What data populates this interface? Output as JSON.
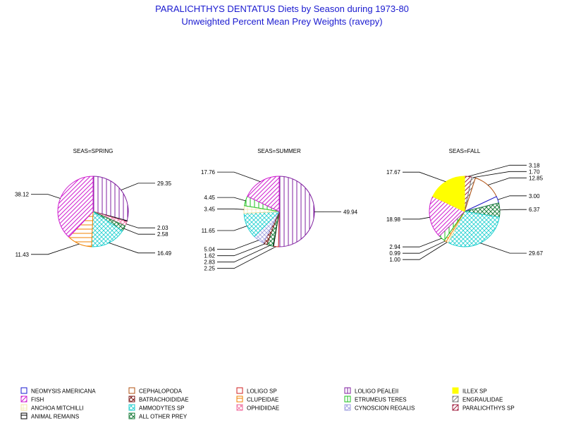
{
  "chart_data": {
    "type": "pie",
    "title": "PARALICHTHYS DENTATUS Diets by Season during 1973-80",
    "subtitle": "Unweighted Percent Mean Prey Weights (ravepy)",
    "colors": {
      "NEOMYSIS AMERICANA": "#1a1ad0",
      "CEPHALOPODA": "#b05010",
      "LOLIGO SP": "#d02020",
      "LOLIGO PEALEII": "#8020a0",
      "ILLEX SP": "#ffff00",
      "FISH": "#d020d0",
      "BATRACHOIDIDAE": "#802020",
      "CLUPEIDAE": "#f08000",
      "ETRUMEUS TERES": "#20c020",
      "ENGRAULIDAE": "#808080",
      "ANCHOA MITCHILLI": "#f0e0a0",
      "AMMODYTES SP": "#20d0d0",
      "OPHIDIIDAE": "#f070a0",
      "CYNOSCION REGALIS": "#a0a0e0",
      "PARALICHTHYS SP": "#a02040",
      "ANIMAL REMAINS": "#000000",
      "ALL OTHER PREY": "#208040"
    },
    "legend": [
      "NEOMYSIS AMERICANA",
      "CEPHALOPODA",
      "LOLIGO SP",
      "LOLIGO PEALEII",
      "ILLEX SP",
      "FISH",
      "BATRACHOIDIDAE",
      "CLUPEIDAE",
      "ETRUMEUS TERES",
      "ENGRAULIDAE",
      "ANCHOA MITCHILLI",
      "AMMODYTES SP",
      "OPHIDIIDAE",
      "CYNOSCION REGALIS",
      "PARALICHTHYS SP",
      "ANIMAL REMAINS",
      "ALL OTHER PREY"
    ],
    "pies": [
      {
        "title": "SEAS=SPRING",
        "slices": [
          {
            "category": "LOLIGO PEALEII",
            "value": 29.35,
            "label": "29.35"
          },
          {
            "category": "ANIMAL REMAINS",
            "value": 0.5,
            "label": ""
          },
          {
            "category": "OPHIDIIDAE",
            "value": 2.03,
            "label": "2.03"
          },
          {
            "category": "ALL OTHER PREY",
            "value": 2.58,
            "label": "2.58"
          },
          {
            "category": "AMMODYTES SP",
            "value": 16.49,
            "label": "16.49"
          },
          {
            "category": "CLUPEIDAE",
            "value": 11.43,
            "label": "11.43"
          },
          {
            "category": "FISH",
            "value": 38.12,
            "label": "38.12"
          }
        ]
      },
      {
        "title": "SEAS=SUMMER",
        "slices": [
          {
            "category": "LOLIGO PEALEII",
            "value": 49.94,
            "label": "49.94"
          },
          {
            "category": "LOLIGO SP",
            "value": 2.25,
            "label": "2.25"
          },
          {
            "category": "ANIMAL REMAINS",
            "value": 0.3,
            "label": ""
          },
          {
            "category": "ALL OTHER PREY",
            "value": 2.83,
            "label": "2.83"
          },
          {
            "category": "BATRACHOIDIDAE",
            "value": 1.62,
            "label": "1.62"
          },
          {
            "category": "CYNOSCION REGALIS",
            "value": 5.04,
            "label": "5.04"
          },
          {
            "category": "AMMODYTES SP",
            "value": 11.65,
            "label": "11.65"
          },
          {
            "category": "ANCHOA MITCHILLI",
            "value": 3.45,
            "label": "3.45"
          },
          {
            "category": "ETRUMEUS TERES",
            "value": 4.45,
            "label": "4.45"
          },
          {
            "category": "FISH",
            "value": 17.76,
            "label": "17.76"
          }
        ]
      },
      {
        "title": "SEAS=FALL",
        "slices": [
          {
            "category": "PARALICHTHYS SP",
            "value": 3.18,
            "label": "3.18"
          },
          {
            "category": "ENGRAULIDAE",
            "value": 1.7,
            "label": "1.70"
          },
          {
            "category": "CEPHALOPODA",
            "value": 12.85,
            "label": "12.85"
          },
          {
            "category": "NEOMYSIS AMERICANA",
            "value": 3.0,
            "label": "3.00"
          },
          {
            "category": "ALL OTHER PREY",
            "value": 6.37,
            "label": "6.37"
          },
          {
            "category": "AMMODYTES SP",
            "value": 29.67,
            "label": "29.67"
          },
          {
            "category": "ANCHOA MITCHILLI",
            "value": 1.0,
            "label": "1.00"
          },
          {
            "category": "CLUPEIDAE",
            "value": 0.99,
            "label": "0.99"
          },
          {
            "category": "ETRUMEUS TERES",
            "value": 2.94,
            "label": "2.94"
          },
          {
            "category": "FISH",
            "value": 18.98,
            "label": "18.98"
          },
          {
            "category": "ILLEX SP",
            "value": 17.67,
            "label": "17.67"
          }
        ]
      }
    ]
  }
}
